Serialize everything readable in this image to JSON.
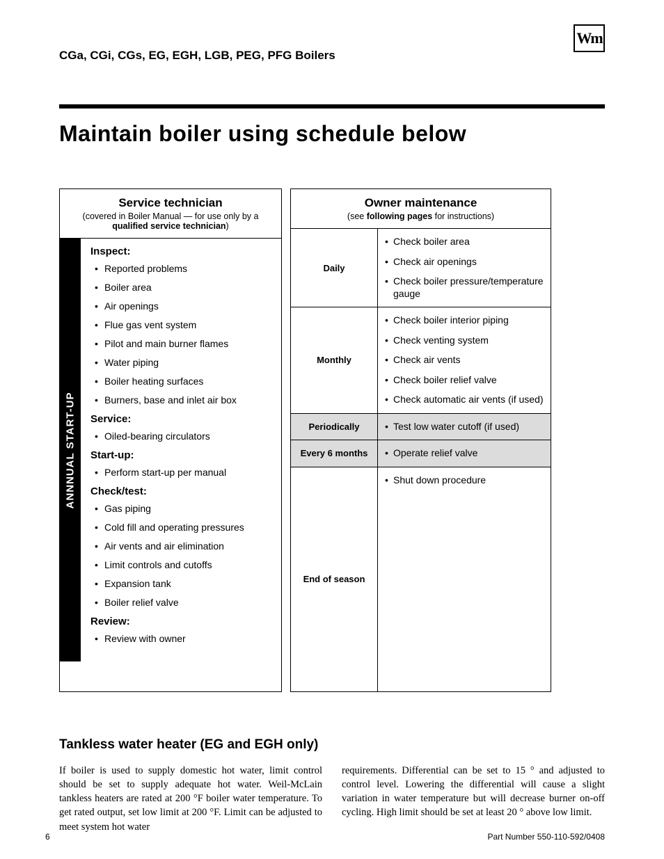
{
  "logo_text": "Wm",
  "header_line": "CGa, CGi, CGs, EG, EGH, LGB, PEG, PFG Boilers",
  "main_title": "Maintain boiler using schedule below",
  "service_table": {
    "header_title": "Service technician",
    "header_sub_pre": "(covered in Boiler Manual — for use only by a ",
    "header_sub_bold": "qualified service technician",
    "header_sub_post": ")",
    "sidebar": "ANNNUAL START-UP",
    "sections": [
      {
        "heading": "Inspect:",
        "items": [
          "Reported problems",
          "Boiler area",
          "Air openings",
          "Flue gas vent system",
          "Pilot and main burner flames",
          "Water piping",
          "Boiler heating surfaces",
          "Burners, base and inlet air box"
        ]
      },
      {
        "heading": "Service:",
        "items": [
          "Oiled-bearing circulators"
        ]
      },
      {
        "heading": "Start-up:",
        "items": [
          "Perform start-up per manual"
        ]
      },
      {
        "heading": "Check/test:",
        "items": [
          "Gas piping",
          "Cold fill and operating pressures",
          "Air vents and air elimination",
          "Limit controls and cutoffs",
          "Expansion tank",
          "Boiler relief valve"
        ]
      },
      {
        "heading": "Review:",
        "items": [
          "Review with owner"
        ]
      }
    ]
  },
  "owner_table": {
    "header_title": "Owner maintenance",
    "header_sub_pre": "(see ",
    "header_sub_bold": "following pages",
    "header_sub_post": " for instructions)",
    "rows": [
      {
        "label": "Daily",
        "shaded": false,
        "items": [
          "Check boiler area",
          "Check air openings",
          "Check boiler pressure/temperature gauge"
        ]
      },
      {
        "label": "Monthly",
        "shaded": false,
        "items": [
          "Check boiler interior piping",
          "Check venting system",
          "Check air vents",
          "Check boiler relief valve",
          "Check automatic air vents (if used)"
        ]
      },
      {
        "label": "Periodically",
        "shaded": true,
        "items": [
          "Test low water cutoff (if used)"
        ]
      },
      {
        "label": "Every 6 months",
        "shaded": true,
        "items": [
          "Operate relief valve"
        ]
      },
      {
        "label": "End of season",
        "shaded": false,
        "items": [
          "Shut down procedure"
        ],
        "tall": true
      }
    ]
  },
  "sub_heading": "Tankless water heater (EG and EGH only)",
  "body_col1": "If boiler is used to supply domestic hot water, limit control should be set to supply adequate hot water. Weil-McLain tankless heaters are rated at 200 °F boiler water temperature. To get rated output, set low limit at 200 °F. Limit can be adjusted to meet system hot water",
  "body_col2": "requirements. Differential can be set to 15 ° and adjusted to control level. Lowering the differential will cause a slight variation in water temperature but will decrease burner on-off cycling. High limit should be set at least 20 ° above low limit.",
  "page_number": "6",
  "part_number": "Part Number 550-110-592/0408"
}
